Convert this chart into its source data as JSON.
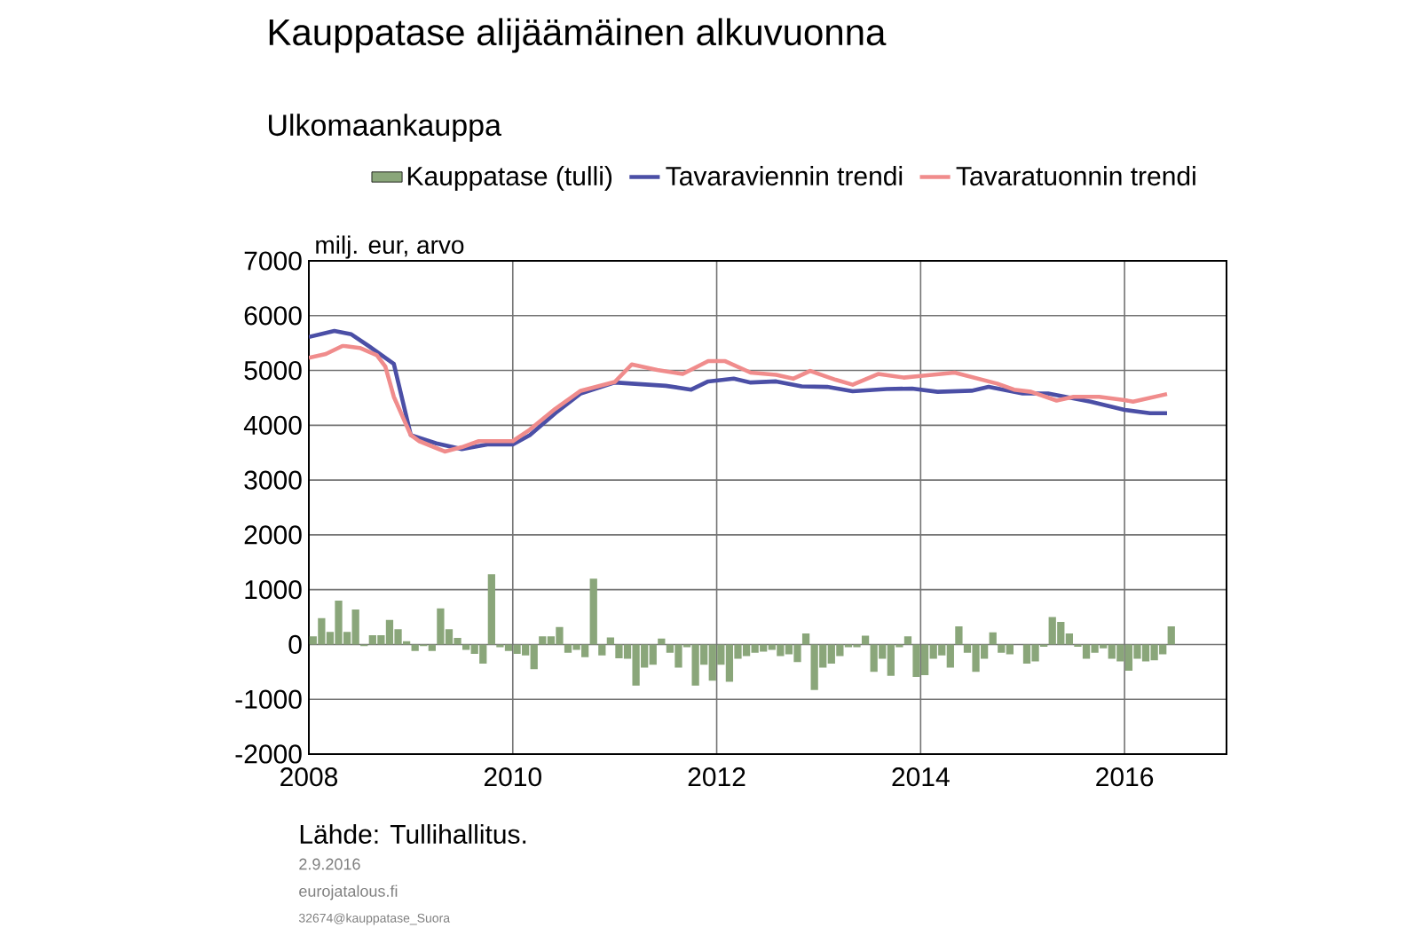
{
  "chart_data": {
    "type": "bar",
    "title": "Kauppatase alijäämäinen alkuvuonna",
    "subtitle": "Ulkomaankauppa",
    "ylabel": "milj. eur, arvo",
    "x": [
      "2008-01",
      "2008-02",
      "2008-03",
      "2008-04",
      "2008-05",
      "2008-06",
      "2008-07",
      "2008-08",
      "2008-09",
      "2008-10",
      "2008-11",
      "2008-12",
      "2009-01",
      "2009-02",
      "2009-03",
      "2009-04",
      "2009-05",
      "2009-06",
      "2009-07",
      "2009-08",
      "2009-09",
      "2009-10",
      "2009-11",
      "2009-12",
      "2010-01",
      "2010-02",
      "2010-03",
      "2010-04",
      "2010-05",
      "2010-06",
      "2010-07",
      "2010-08",
      "2010-09",
      "2010-10",
      "2010-11",
      "2010-12",
      "2011-01",
      "2011-02",
      "2011-03",
      "2011-04",
      "2011-05",
      "2011-06",
      "2011-07",
      "2011-08",
      "2011-09",
      "2011-10",
      "2011-11",
      "2011-12",
      "2012-01",
      "2012-02",
      "2012-03",
      "2012-04",
      "2012-05",
      "2012-06",
      "2012-07",
      "2012-08",
      "2012-09",
      "2012-10",
      "2012-11",
      "2012-12",
      "2013-01",
      "2013-02",
      "2013-03",
      "2013-04",
      "2013-05",
      "2013-06",
      "2013-07",
      "2013-08",
      "2013-09",
      "2013-10",
      "2013-11",
      "2013-12",
      "2014-01",
      "2014-02",
      "2014-03",
      "2014-04",
      "2014-05",
      "2014-06",
      "2014-07",
      "2014-08",
      "2014-09",
      "2014-10",
      "2014-11",
      "2014-12",
      "2015-01",
      "2015-02",
      "2015-03",
      "2015-04",
      "2015-05",
      "2015-06",
      "2015-07",
      "2015-08",
      "2015-09",
      "2015-10",
      "2015-11",
      "2015-12",
      "2016-01",
      "2016-02",
      "2016-03",
      "2016-04",
      "2016-05",
      "2016-06"
    ],
    "series": [
      {
        "name": "Kauppatase (tulli)",
        "color": "#8aa67a",
        "values": [
          150,
          480,
          230,
          800,
          230,
          640,
          -30,
          170,
          170,
          450,
          280,
          60,
          -120,
          -30,
          -120,
          660,
          280,
          120,
          -100,
          -170,
          -350,
          1280,
          -50,
          -120,
          -170,
          -200,
          -450,
          150,
          150,
          320,
          -150,
          -100,
          -230,
          1200,
          -200,
          130,
          -250,
          -260,
          -750,
          -420,
          -370,
          110,
          -150,
          -420,
          -50,
          -750,
          -370,
          -660,
          -370,
          -680,
          -260,
          -210,
          -150,
          -130,
          -100,
          -210,
          -180,
          -320,
          200,
          -830,
          -420,
          -350,
          -210,
          -50,
          -50,
          160,
          -500,
          -260,
          -570,
          -50,
          150,
          -590,
          -560,
          -260,
          -200,
          -420,
          330,
          -150,
          -500,
          -260,
          220,
          -150,
          -180,
          0,
          -350,
          -310,
          -40,
          500,
          410,
          200,
          -40,
          -260,
          -150,
          -70,
          -260,
          -310,
          -480,
          -260,
          -310,
          -290,
          -180,
          330
        ]
      },
      {
        "name": "Tavaraviennin trendi",
        "type": "line",
        "color": "#4b4fa6",
        "x": [
          "2008-01",
          "2008-04",
          "2008-06",
          "2008-08",
          "2008-11",
          "2009-01",
          "2009-04",
          "2009-07",
          "2009-10",
          "2010-01",
          "2010-03",
          "2010-06",
          "2010-09",
          "2011-01",
          "2011-05",
          "2011-07",
          "2011-10",
          "2011-12",
          "2012-03",
          "2012-05",
          "2012-08",
          "2012-11",
          "2013-02",
          "2013-05",
          "2013-09",
          "2013-12",
          "2014-03",
          "2014-07",
          "2014-09",
          "2015-01",
          "2015-04",
          "2015-09",
          "2016-01",
          "2016-04",
          "2016-06"
        ],
        "values": [
          5610,
          5720,
          5660,
          5450,
          5120,
          3820,
          3670,
          3565,
          3650,
          3650,
          3820,
          4220,
          4580,
          4780,
          4740,
          4720,
          4650,
          4800,
          4850,
          4780,
          4800,
          4710,
          4700,
          4620,
          4660,
          4670,
          4610,
          4630,
          4700,
          4580,
          4580,
          4430,
          4280,
          4220,
          4220
        ]
      },
      {
        "name": "Tavaratuonnin trendi",
        "type": "line",
        "color": "#f08c8c",
        "x": [
          "2008-01",
          "2008-03",
          "2008-05",
          "2008-07",
          "2008-09",
          "2008-10",
          "2008-11",
          "2009-01",
          "2009-02",
          "2009-05",
          "2009-07",
          "2009-09",
          "2010-01",
          "2010-03",
          "2010-06",
          "2010-09",
          "2011-01",
          "2011-03",
          "2011-06",
          "2011-09",
          "2011-12",
          "2012-02",
          "2012-05",
          "2012-08",
          "2012-10",
          "2012-12",
          "2013-03",
          "2013-05",
          "2013-08",
          "2013-11",
          "2014-01",
          "2014-05",
          "2014-10",
          "2014-12",
          "2015-02",
          "2015-05",
          "2015-07",
          "2015-10",
          "2016-01",
          "2016-02",
          "2016-06"
        ],
        "values": [
          5230,
          5300,
          5450,
          5410,
          5280,
          5070,
          4520,
          3820,
          3710,
          3520,
          3600,
          3710,
          3710,
          3920,
          4300,
          4630,
          4790,
          5110,
          5010,
          4935,
          5170,
          5170,
          4960,
          4920,
          4850,
          4990,
          4830,
          4740,
          4935,
          4870,
          4900,
          4960,
          4760,
          4650,
          4610,
          4450,
          4520,
          4520,
          4460,
          4430,
          4570
        ]
      }
    ],
    "xlim": [
      "2008",
      "2017"
    ],
    "xticks": [
      "2008",
      "2010",
      "2012",
      "2014",
      "2016"
    ],
    "ylim": [
      -2000,
      7000
    ],
    "yticks": [
      -2000,
      -1000,
      0,
      1000,
      2000,
      3000,
      4000,
      5000,
      6000,
      7000
    ],
    "grid": true,
    "legend": "top",
    "annotations": [
      "Lähde: Tullihallitus.",
      "2.9.2016",
      "eurojatalous.fi",
      "32674@kauppatase_Suora"
    ]
  }
}
